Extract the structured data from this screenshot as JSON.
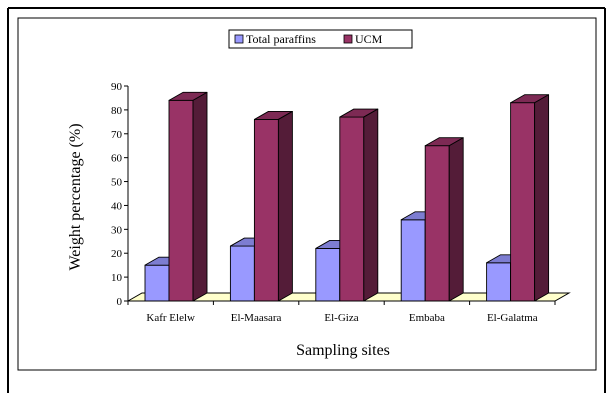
{
  "chart_data": {
    "type": "bar",
    "style": "3d-clustered",
    "categories": [
      "Kafr Elelw",
      "El-Maasara",
      "El-Giza",
      "Embaba",
      "El-Galatma"
    ],
    "series": [
      {
        "name": "Total paraffins",
        "color": "#9999ff",
        "values": [
          15,
          23,
          22,
          34,
          16
        ]
      },
      {
        "name": "UCM",
        "color": "#993366",
        "values": [
          84,
          76,
          77,
          65,
          83
        ]
      }
    ],
    "xlabel": "Sampling sites",
    "ylabel": "Weight percentage (%)",
    "ylim": [
      0,
      90
    ],
    "yticks": [
      0,
      10,
      20,
      30,
      40,
      50,
      60,
      70,
      80,
      90
    ],
    "floor_color": "#ffffcc",
    "grid": false,
    "legend_position": "top"
  }
}
